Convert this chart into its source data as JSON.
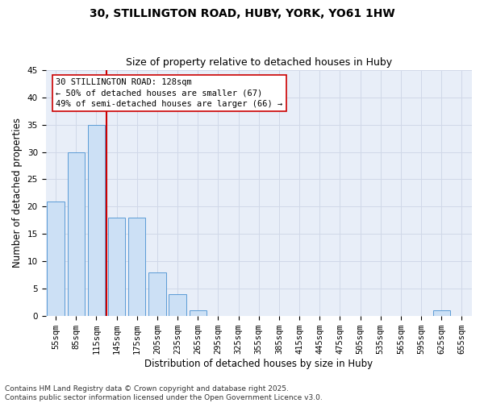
{
  "title_line1": "30, STILLINGTON ROAD, HUBY, YORK, YO61 1HW",
  "title_line2": "Size of property relative to detached houses in Huby",
  "xlabel": "Distribution of detached houses by size in Huby",
  "ylabel": "Number of detached properties",
  "bin_labels": [
    "55sqm",
    "85sqm",
    "115sqm",
    "145sqm",
    "175sqm",
    "205sqm",
    "235sqm",
    "265sqm",
    "295sqm",
    "325sqm",
    "355sqm",
    "385sqm",
    "415sqm",
    "445sqm",
    "475sqm",
    "505sqm",
    "535sqm",
    "565sqm",
    "595sqm",
    "625sqm",
    "655sqm"
  ],
  "bar_values": [
    21,
    30,
    35,
    18,
    18,
    8,
    4,
    1,
    0,
    0,
    0,
    0,
    0,
    0,
    0,
    0,
    0,
    0,
    0,
    1,
    0
  ],
  "n_bins": 21,
  "property_size_bin": 2.5,
  "bar_color": "#cce0f5",
  "bar_edge_color": "#5b9bd5",
  "vline_color": "#cc0000",
  "annotation_text": "30 STILLINGTON ROAD: 128sqm\n← 50% of detached houses are smaller (67)\n49% of semi-detached houses are larger (66) →",
  "annotation_box_edge": "#cc0000",
  "ylim": [
    0,
    45
  ],
  "yticks": [
    0,
    5,
    10,
    15,
    20,
    25,
    30,
    35,
    40,
    45
  ],
  "grid_color": "#d0d8e8",
  "bg_color": "#e8eef8",
  "footer_text": "Contains HM Land Registry data © Crown copyright and database right 2025.\nContains public sector information licensed under the Open Government Licence v3.0.",
  "title_fontsize": 10,
  "subtitle_fontsize": 9,
  "axis_label_fontsize": 8.5,
  "tick_fontsize": 7.5,
  "annotation_fontsize": 7.5,
  "footer_fontsize": 6.5
}
